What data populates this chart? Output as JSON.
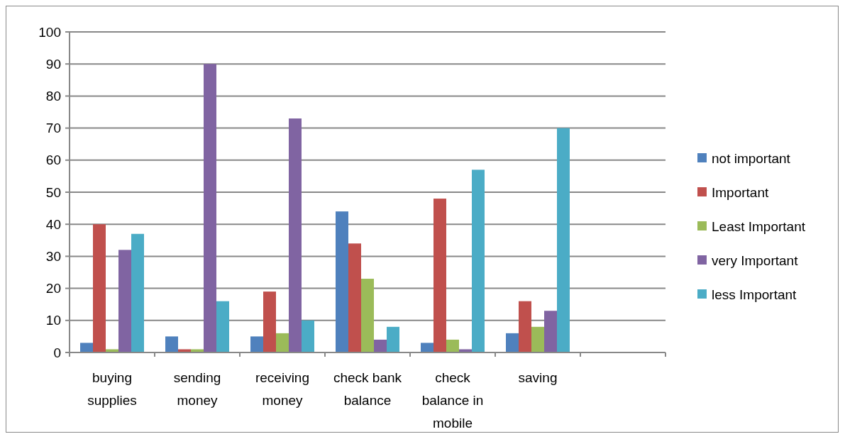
{
  "chart_data": {
    "type": "bar",
    "categories": [
      "buying supplies",
      "sending money",
      "receiving money",
      "check bank balance",
      "check balance in mobile",
      "saving",
      null
    ],
    "series": [
      {
        "name": "not important",
        "color": "#4f81bd",
        "values": [
          3,
          5,
          5,
          44,
          3,
          6,
          null
        ]
      },
      {
        "name": "Important",
        "color": "#c0504d",
        "values": [
          40,
          1,
          19,
          34,
          48,
          16,
          null
        ]
      },
      {
        "name": "Least Important",
        "color": "#9bbb59",
        "values": [
          1,
          1,
          6,
          23,
          4,
          8,
          null
        ]
      },
      {
        "name": "very Important",
        "color": "#8064a2",
        "values": [
          32,
          90,
          73,
          4,
          1,
          13,
          null
        ]
      },
      {
        "name": "less Important",
        "color": "#4bacc6",
        "values": [
          37,
          16,
          10,
          8,
          57,
          70,
          null
        ]
      }
    ],
    "ylim": [
      0,
      100
    ],
    "yticks": [
      0,
      10,
      20,
      30,
      40,
      50,
      60,
      70,
      80,
      90,
      100
    ],
    "grid": "y",
    "legend": "right"
  }
}
